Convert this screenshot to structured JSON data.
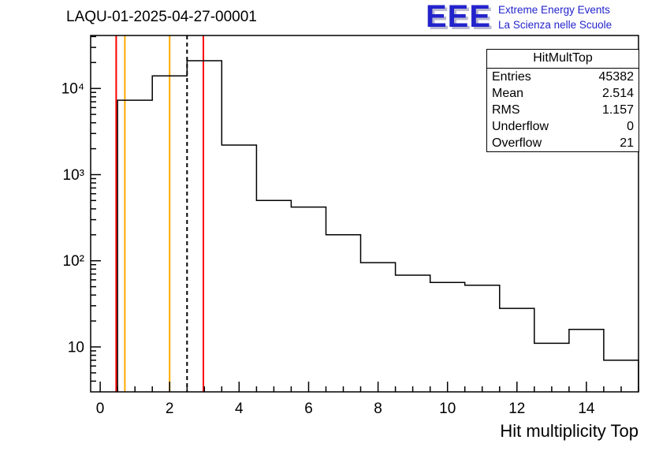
{
  "header": {
    "title": "LAQU-01-2025-04-27-00001",
    "logo": {
      "acronym": "EEE",
      "line1": "Extreme Energy Events",
      "line2": "La Scienza nelle Scuole",
      "brand_color": "#2323cc"
    }
  },
  "stats": {
    "title": "HitMultTop",
    "rows": [
      {
        "label": "Entries",
        "value": "45382"
      },
      {
        "label": "Mean",
        "value": "2.514"
      },
      {
        "label": "RMS",
        "value": "1.157"
      },
      {
        "label": "Underflow",
        "value": "0"
      },
      {
        "label": "Overflow",
        "value": "21"
      }
    ]
  },
  "chart_data": {
    "type": "bar",
    "style": "step-histogram",
    "title": "LAQU-01-2025-04-27-00001",
    "xlabel": "Hit multiplicity Top",
    "ylabel": "",
    "ylog": true,
    "grid": false,
    "xlim": [
      -0.275,
      15.5
    ],
    "ylim_log10": [
      0.478,
      4.615
    ],
    "x_ticks": [
      0,
      2,
      4,
      6,
      8,
      10,
      12,
      14
    ],
    "x_minor_step": 0.5,
    "y_tick_labels": [
      "10",
      "10²",
      "10³",
      "10⁴"
    ],
    "bin_edges": [
      0.5,
      1.5,
      2.5,
      3.5,
      4.5,
      5.5,
      6.5,
      7.5,
      8.5,
      9.5,
      10.5,
      11.5,
      12.5,
      13.5,
      14.5,
      15.5
    ],
    "values": [
      7300,
      14000,
      21000,
      2200,
      500,
      420,
      200,
      95,
      68,
      56,
      52,
      28,
      11,
      16,
      7
    ],
    "line_color": "#000000",
    "vlines": [
      {
        "x": 0.46,
        "color": "#ff0000",
        "dash": false,
        "name": "red-marker-line-low"
      },
      {
        "x": 0.71,
        "color": "#ffaa00",
        "dash": false,
        "name": "orange-marker-line-low"
      },
      {
        "x": 2.0,
        "color": "#ffaa00",
        "dash": false,
        "name": "orange-marker-line-high"
      },
      {
        "x": 2.5,
        "color": "#000000",
        "dash": true,
        "name": "mean-dashed-line"
      },
      {
        "x": 2.97,
        "color": "#ff0000",
        "dash": false,
        "name": "red-marker-line-high"
      }
    ]
  }
}
